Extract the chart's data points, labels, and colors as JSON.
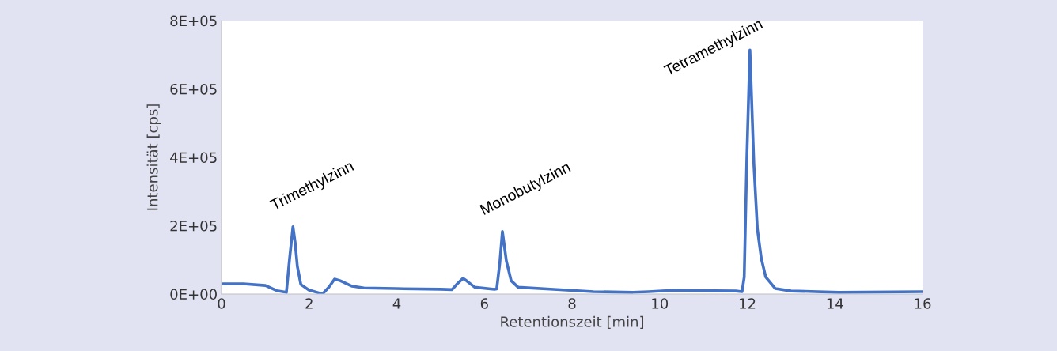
{
  "chart_data": {
    "type": "line",
    "xlabel": "Retentionszeit [min]",
    "ylabel": "Intensität [cps]",
    "xlim": [
      0,
      16
    ],
    "xticks": [
      0,
      2,
      4,
      6,
      8,
      10,
      12,
      14,
      16
    ],
    "ylim": [
      0,
      800000
    ],
    "yticks": [
      {
        "value": 0,
        "label": "0E+00"
      },
      {
        "value": 200000,
        "label": "2E+05"
      },
      {
        "value": 400000,
        "label": "4E+05"
      },
      {
        "value": 600000,
        "label": "6E+05"
      },
      {
        "value": 800000,
        "label": "8E+05"
      }
    ],
    "grid": false,
    "legend": false,
    "marker": "none",
    "line_style": "solid",
    "series": [
      {
        "color": "#4472c4",
        "x": [
          0,
          0.5,
          1.0,
          1.26,
          1.48,
          1.55,
          1.63,
          1.68,
          1.73,
          1.81,
          1.99,
          2.26,
          2.31,
          2.45,
          2.58,
          2.71,
          2.98,
          3.25,
          3.97,
          5.0,
          5.26,
          5.38,
          5.51,
          5.6,
          5.78,
          6.23,
          6.28,
          6.35,
          6.41,
          6.5,
          6.61,
          6.77,
          7.58,
          8.49,
          9.39,
          9.75,
          10.29,
          11.74,
          11.88,
          11.93,
          11.99,
          12.06,
          12.15,
          12.23,
          12.32,
          12.42,
          12.64,
          13.0,
          14.09,
          16.0
        ],
        "values": [
          30000,
          30000,
          25000,
          10000,
          5000,
          100000,
          197000,
          150000,
          81000,
          28000,
          12000,
          2000,
          1000,
          20000,
          44000,
          39000,
          23000,
          18000,
          16000,
          14000,
          13000,
          30000,
          46000,
          38000,
          20000,
          14000,
          15000,
          90000,
          183000,
          97000,
          39000,
          20000,
          14000,
          7000,
          5000,
          7000,
          11000,
          9000,
          7000,
          50000,
          400000,
          714000,
          380000,
          190000,
          104000,
          50000,
          16000,
          9000,
          5000,
          7000
        ]
      }
    ],
    "annotations": [
      {
        "text": "Trimethylzinn",
        "x": 1.63,
        "y": 197000
      },
      {
        "text": "Monobutylzinn",
        "x": 6.41,
        "y": 183000
      },
      {
        "text": "Tetramethylzinn",
        "x": 12.06,
        "y": 714000
      }
    ]
  }
}
